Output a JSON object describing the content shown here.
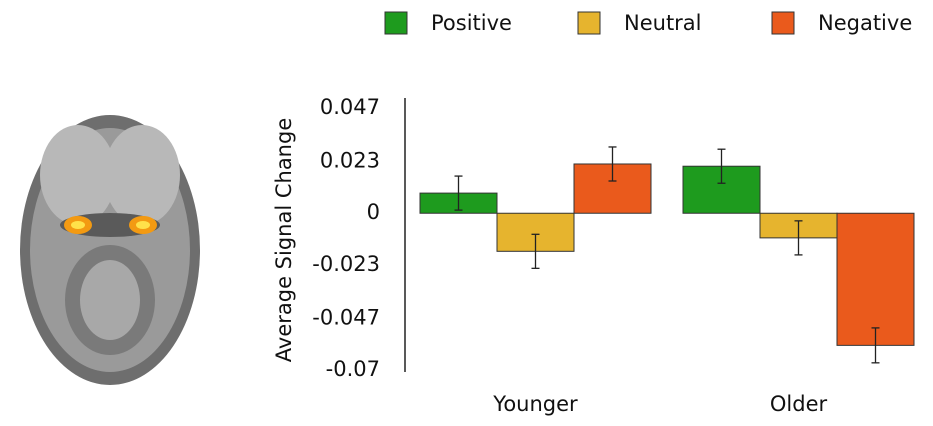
{
  "chart_data": {
    "type": "bar",
    "ylabel": "Average Signal Change",
    "categories": [
      "Younger",
      "Older"
    ],
    "series": [
      {
        "name": "Positive",
        "color": "#1e9b1e",
        "values": [
          0.009,
          0.021
        ],
        "errors": [
          0.0076,
          0.0076
        ]
      },
      {
        "name": "Neutral",
        "color": "#e6b42e",
        "values": [
          -0.017,
          -0.011
        ],
        "errors": [
          0.0076,
          0.0076
        ]
      },
      {
        "name": "Negative",
        "color": "#ea5a1c",
        "values": [
          0.022,
          -0.059
        ],
        "errors": [
          0.0076,
          0.0078
        ]
      }
    ],
    "ylim": [
      -0.07,
      0.047
    ],
    "yticks": [
      0.047,
      0.023,
      0,
      -0.023,
      -0.047,
      -0.07
    ]
  }
}
